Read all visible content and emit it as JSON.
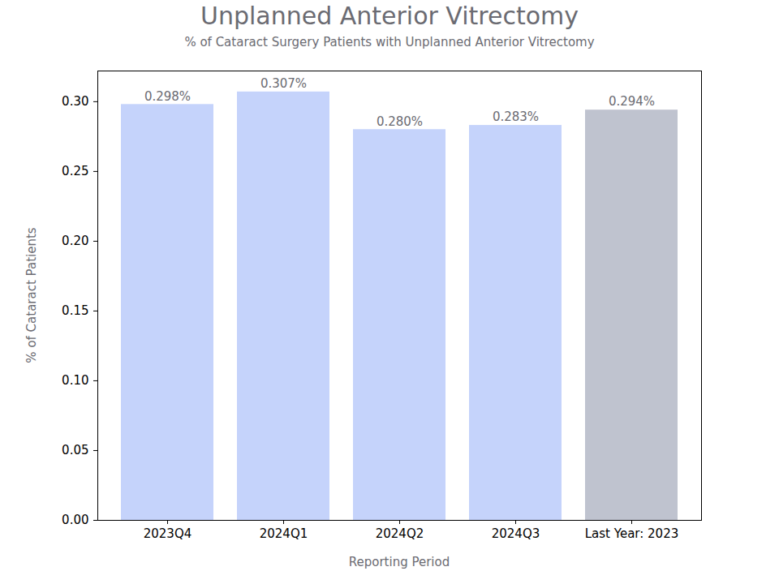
{
  "chart_data": {
    "type": "bar",
    "title": "Unplanned Anterior Vitrectomy",
    "subtitle": "% of Cataract Surgery Patients with Unplanned Anterior Vitrectomy",
    "x_label": "Reporting Period",
    "y_label": "% of Cataract Patients",
    "categories": [
      "2023Q4",
      "2024Q1",
      "2024Q2",
      "2024Q3",
      "Last Year: 2023"
    ],
    "values": [
      0.298,
      0.307,
      0.28,
      0.283,
      0.294
    ],
    "value_labels": [
      "0.298%",
      "0.307%",
      "0.280%",
      "0.283%",
      "0.294%"
    ],
    "colors": [
      "#c5d3fb",
      "#c5d3fb",
      "#c5d3fb",
      "#c5d3fb",
      "#bfc3cf"
    ],
    "ylim": [
      0,
      0.322
    ],
    "yticks": [
      {
        "value": 0,
        "label": "0.00"
      },
      {
        "value": 0.05,
        "label": "0.05"
      },
      {
        "value": 0.1,
        "label": "0.10"
      },
      {
        "value": 0.15,
        "label": "0.15"
      },
      {
        "value": 0.2,
        "label": "0.20"
      },
      {
        "value": 0.25,
        "label": "0.25"
      },
      {
        "value": 0.3,
        "label": "0.30"
      }
    ],
    "data_labels": true,
    "grid": false
  }
}
